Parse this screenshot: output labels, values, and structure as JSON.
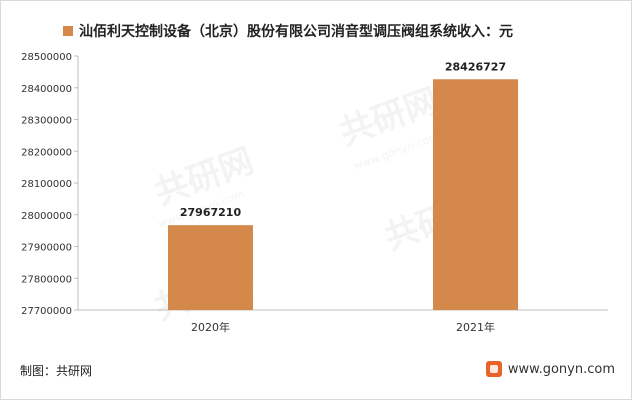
{
  "chart_data": {
    "type": "bar",
    "title": "汕佰利天控制设备（北京）股份有限公司消音型调压阀组系统收入：元",
    "categories": [
      "2020年",
      "2021年"
    ],
    "series": [
      {
        "name": "汕佰利天控制设备（北京）股份有限公司消音型调压阀组系统收入：元",
        "values": [
          27967210,
          28426727
        ],
        "color": "#d4894a"
      }
    ],
    "data_labels": [
      "27967210",
      "28426727"
    ],
    "ylim": [
      27700000,
      28500000
    ],
    "yticks": [
      "28500000",
      "28400000",
      "28300000",
      "28200000",
      "28100000",
      "28000000",
      "27900000",
      "27800000",
      "27700000"
    ],
    "xlabel": "",
    "ylabel": "",
    "grid": false,
    "legend": "top"
  },
  "footer": {
    "source": "制图：共研网",
    "website": "www.gonyn.com",
    "logo_icon": "gonyn-logo-icon"
  },
  "watermark": {
    "text": "共研网",
    "url_text": "www.gonyn.com"
  }
}
